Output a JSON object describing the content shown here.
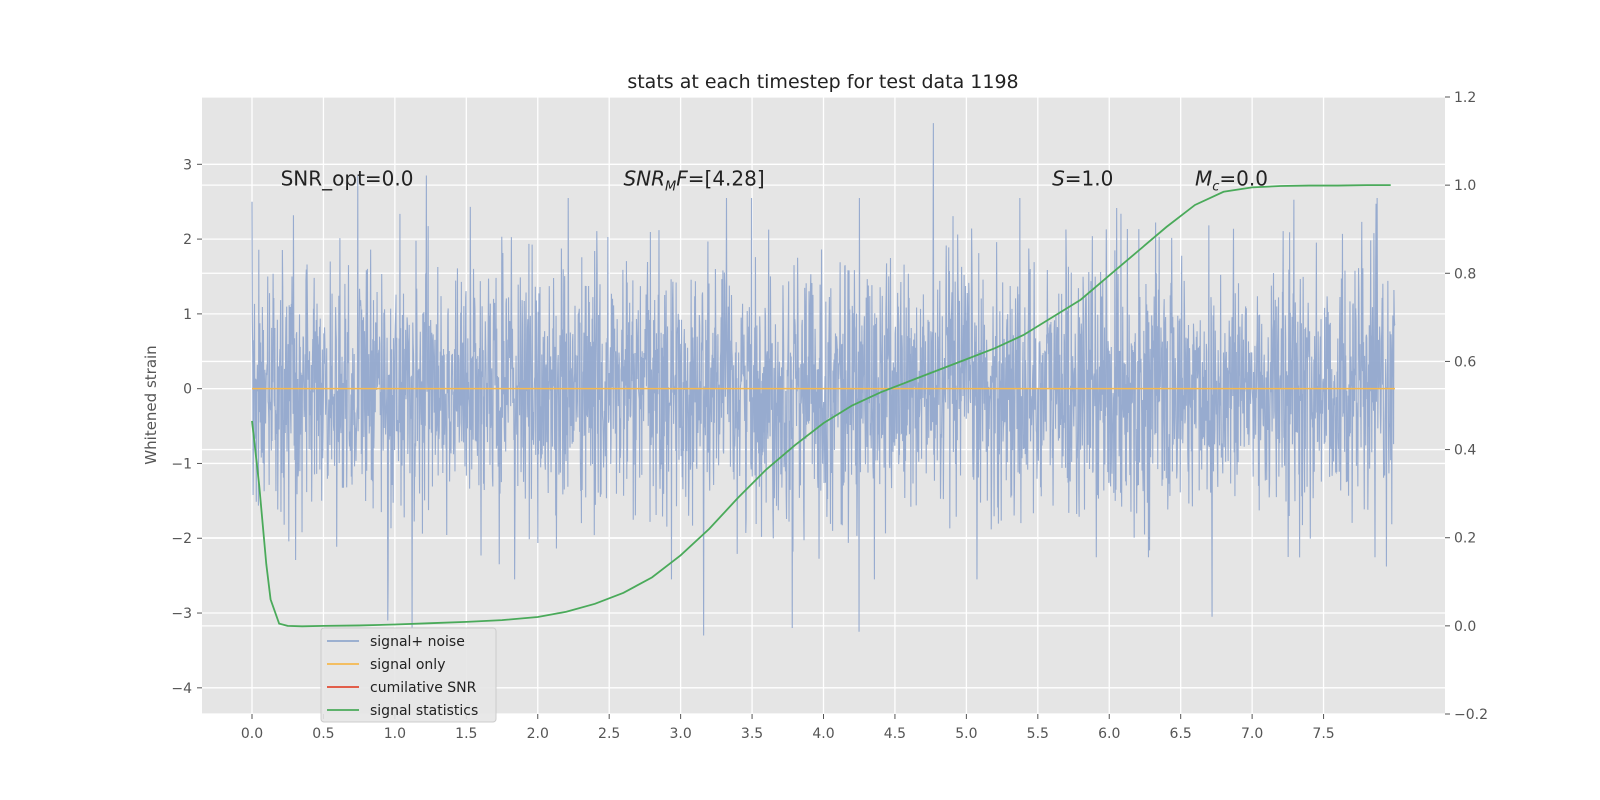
{
  "chart_data": {
    "type": "line",
    "title": "stats at each timestep for test data 1198",
    "xlabel": "",
    "ylabel": "Whitened strain",
    "xlim": [
      -0.35,
      8.35
    ],
    "ylim": [
      -4.35,
      3.9
    ],
    "y2lim": [
      -0.2,
      1.2
    ],
    "grid": true,
    "x_ticks": [
      0.0,
      0.5,
      1.0,
      1.5,
      2.0,
      2.5,
      3.0,
      3.5,
      4.0,
      4.5,
      5.0,
      5.5,
      6.0,
      6.5,
      7.0,
      7.5
    ],
    "x_tick_labels": [
      "0.0",
      "0.5",
      "1.0",
      "1.5",
      "2.0",
      "2.5",
      "3.0",
      "3.5",
      "4.0",
      "4.5",
      "5.0",
      "5.5",
      "6.0",
      "6.5",
      "7.0",
      "7.5"
    ],
    "y_ticks": [
      3,
      2,
      1,
      0,
      -1,
      -2,
      -3,
      -4
    ],
    "y_tick_labels": [
      "3",
      "2",
      "1",
      "0",
      "−1",
      "−2",
      "−3",
      "−4"
    ],
    "y2_ticks": [
      1.2,
      1.0,
      0.8,
      0.6,
      0.4,
      0.2,
      0.0,
      -0.2
    ],
    "y2_tick_labels": [
      "1.2",
      "1.0",
      "0.8",
      "0.6",
      "0.4",
      "0.2",
      "0.0",
      "−0.2"
    ],
    "legend_position": "lower-left",
    "series": [
      {
        "name": "signal+ noise",
        "axis": "left",
        "color": "#92a8cd",
        "kind": "noise",
        "x_range": [
          0.0,
          8.0
        ],
        "typical_amplitude": 1.5,
        "extremes": [
          {
            "x": 4.77,
            "y": 3.55
          },
          {
            "x": 1.22,
            "y": 2.85
          },
          {
            "x": 0.74,
            "y": 2.85
          },
          {
            "x": 0.0,
            "y": 2.5
          },
          {
            "x": 3.16,
            "y": -3.3
          },
          {
            "x": 4.25,
            "y": -3.25
          },
          {
            "x": 3.78,
            "y": -3.2
          },
          {
            "x": 6.72,
            "y": -3.05
          },
          {
            "x": 0.95,
            "y": -3.1
          },
          {
            "x": 1.12,
            "y": -3.2
          }
        ]
      },
      {
        "name": "signal only",
        "axis": "left",
        "color": "#f5b94f",
        "x": [
          0.0,
          8.0
        ],
        "values": [
          0.0,
          0.0
        ]
      },
      {
        "name": "cumilative SNR",
        "axis": "left",
        "color": "#e24a33",
        "x": [],
        "values": []
      },
      {
        "name": "signal statistics",
        "axis": "right",
        "color": "#4aaa5a",
        "x": [
          0.0,
          0.05,
          0.1,
          0.13,
          0.19,
          0.25,
          0.35,
          0.5,
          0.75,
          1.0,
          1.25,
          1.5,
          1.75,
          2.0,
          2.2,
          2.4,
          2.6,
          2.8,
          3.0,
          3.2,
          3.4,
          3.6,
          3.8,
          4.0,
          4.2,
          4.4,
          4.6,
          4.8,
          5.0,
          5.2,
          5.4,
          5.6,
          5.8,
          6.0,
          6.2,
          6.4,
          6.6,
          6.8,
          7.0,
          7.2,
          7.4,
          7.6,
          7.8,
          7.97
        ],
        "values": [
          0.465,
          0.32,
          0.14,
          0.06,
          0.005,
          0.0,
          -0.001,
          0.0,
          0.001,
          0.003,
          0.006,
          0.009,
          0.013,
          0.02,
          0.032,
          0.05,
          0.075,
          0.11,
          0.16,
          0.22,
          0.29,
          0.355,
          0.41,
          0.46,
          0.5,
          0.53,
          0.555,
          0.58,
          0.605,
          0.63,
          0.66,
          0.7,
          0.74,
          0.795,
          0.85,
          0.905,
          0.955,
          0.985,
          0.995,
          0.998,
          0.999,
          0.999,
          1.0,
          1.0
        ]
      }
    ],
    "annotations": [
      {
        "x": 0.2,
        "y": 2.8,
        "parts": [
          {
            "text": "SNR_opt=0.0",
            "style": "normal"
          }
        ]
      },
      {
        "x": 2.6,
        "y": 2.8,
        "parts": [
          {
            "text": "SNR",
            "style": "italic"
          },
          {
            "text": "M",
            "style": "sub-italic"
          },
          {
            "text": "F",
            "style": "italic"
          },
          {
            "text": "=[4.28]",
            "style": "normal"
          }
        ]
      },
      {
        "x": 5.6,
        "y": 2.8,
        "parts": [
          {
            "text": "S",
            "style": "italic"
          },
          {
            "text": "=1.0",
            "style": "normal"
          }
        ]
      },
      {
        "x": 6.6,
        "y": 2.8,
        "parts": [
          {
            "text": "M",
            "style": "italic"
          },
          {
            "text": "c",
            "style": "sub-italic"
          },
          {
            "text": "=0.0",
            "style": "normal"
          }
        ]
      }
    ]
  }
}
